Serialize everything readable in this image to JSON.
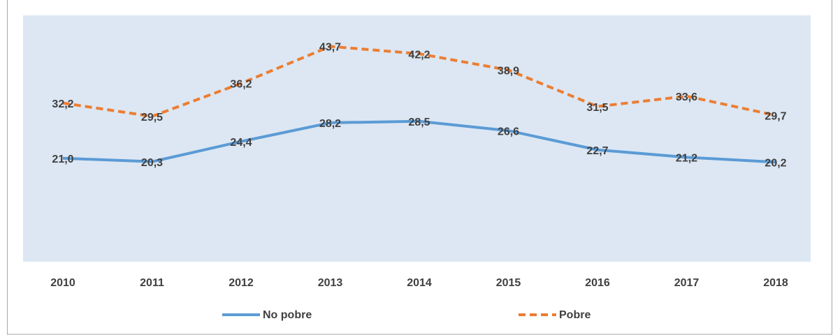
{
  "chart_data": {
    "type": "line",
    "categories": [
      "2010",
      "2011",
      "2012",
      "2013",
      "2014",
      "2015",
      "2016",
      "2017",
      "2018"
    ],
    "series": [
      {
        "name": "No pobre",
        "color": "#5b9bd5",
        "dashed": false,
        "values": [
          21.0,
          20.3,
          24.4,
          28.2,
          28.5,
          26.6,
          22.7,
          21.2,
          20.2
        ],
        "value_labels": [
          "21,0",
          "20,3",
          "24,4",
          "28,2",
          "28,5",
          "26,6",
          "22,7",
          "21,2",
          "20,2"
        ]
      },
      {
        "name": "Pobre",
        "color": "#ed7d31",
        "dashed": true,
        "values": [
          32.2,
          29.5,
          36.2,
          43.7,
          42.2,
          38.9,
          31.5,
          33.6,
          29.7
        ],
        "value_labels": [
          "32,2",
          "29,5",
          "36,2",
          "43,7",
          "42,2",
          "38,9",
          "31,5",
          "33,6",
          "29,7"
        ]
      }
    ],
    "ylim": [
      0,
      50
    ],
    "plot_background": "#dce7f3",
    "legend": "bottom"
  }
}
